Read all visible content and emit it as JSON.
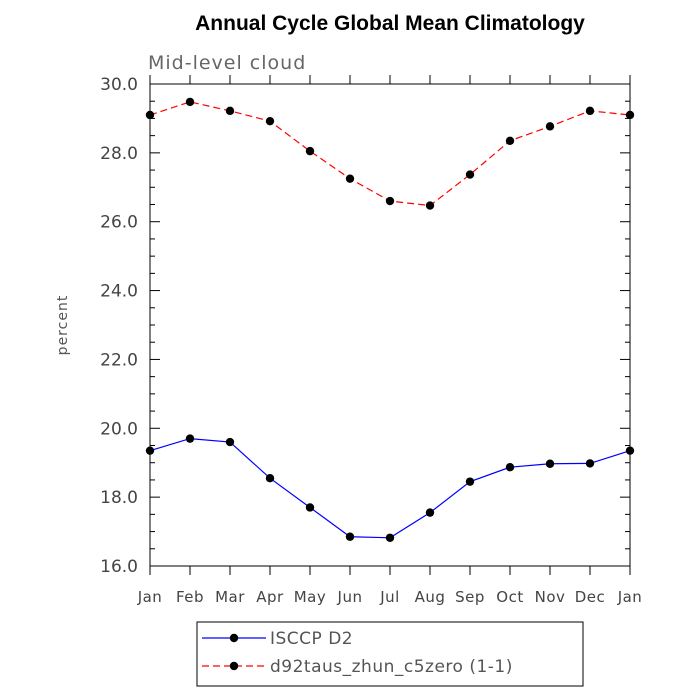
{
  "chart_data": {
    "type": "line",
    "title": "Annual Cycle Global Mean Climatology",
    "subtitle": "Mid-level cloud",
    "xlabel": "",
    "ylabel": "percent",
    "ylim": [
      16.0,
      30.0
    ],
    "yticks": [
      "16.0",
      "18.0",
      "20.0",
      "22.0",
      "24.0",
      "26.0",
      "28.0",
      "30.0"
    ],
    "categories": [
      "Jan",
      "Feb",
      "Mar",
      "Apr",
      "May",
      "Jun",
      "Jul",
      "Aug",
      "Sep",
      "Oct",
      "Nov",
      "Dec",
      "Jan"
    ],
    "grid": false,
    "legend_position": "bottom",
    "series": [
      {
        "name": "ISCCP D2",
        "color": "#0000ff",
        "line_style": "solid",
        "marker": "filled-circle",
        "values": [
          19.35,
          19.7,
          19.6,
          18.55,
          17.7,
          16.85,
          16.82,
          17.55,
          18.45,
          18.87,
          18.97,
          18.98,
          19.35
        ]
      },
      {
        "name": "d92taus_zhun_c5zero (1-1)",
        "color": "#ff0000",
        "line_style": "dashed",
        "marker": "filled-circle",
        "values": [
          29.1,
          29.48,
          29.22,
          28.92,
          28.05,
          27.25,
          26.6,
          26.47,
          27.37,
          28.35,
          28.77,
          29.22,
          29.1
        ]
      }
    ]
  }
}
